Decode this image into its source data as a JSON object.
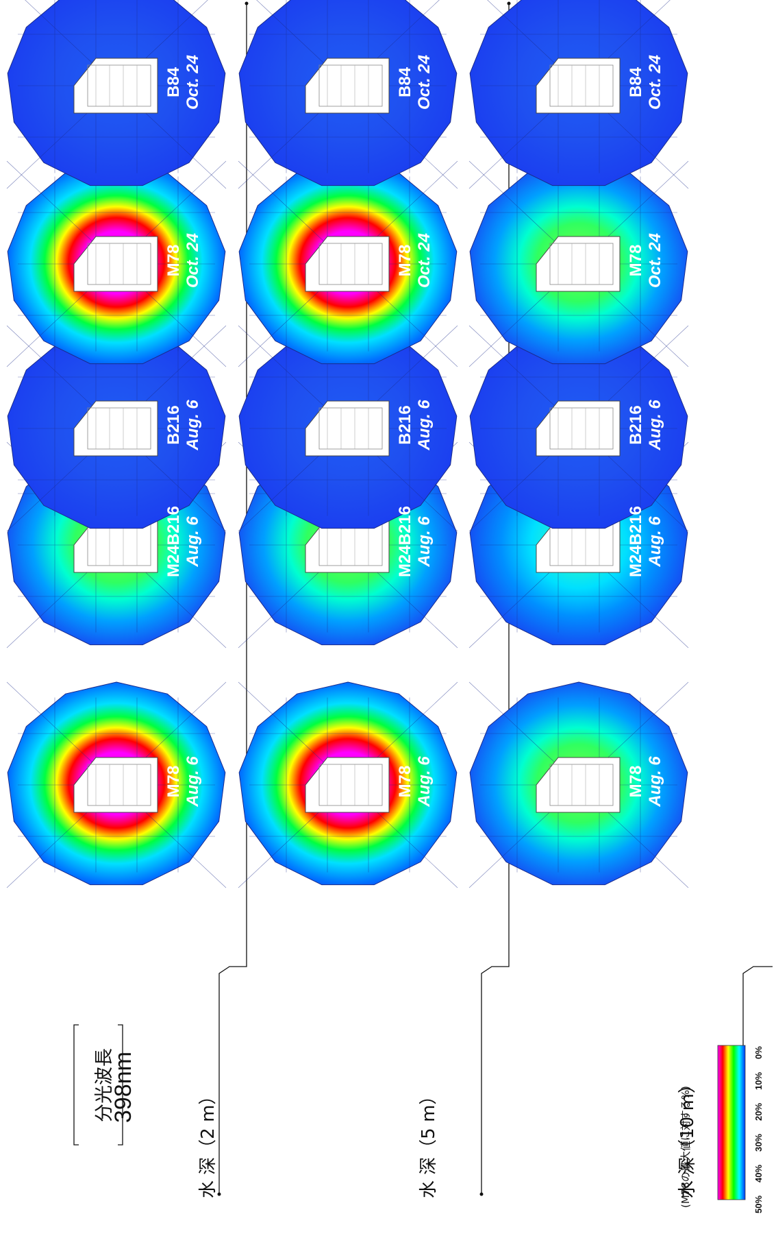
{
  "title_lines": [
    "分光波長",
    "398nm"
  ],
  "rows": [
    {
      "depth_label": "水 深（2 m）",
      "intensity": [
        1.0,
        0.55,
        0.0,
        1.0,
        0.0
      ]
    },
    {
      "depth_label": "水 深（5 m）",
      "intensity": [
        0.9,
        0.5,
        0.0,
        0.85,
        0.0
      ]
    },
    {
      "depth_label": "水 深（10 m）",
      "intensity": [
        0.45,
        0.18,
        0.0,
        0.45,
        0.0
      ]
    }
  ],
  "columns": [
    {
      "station": "M78",
      "date": "Aug. 6"
    },
    {
      "station": "M24B216",
      "date": "Aug. 6"
    },
    {
      "station": "B216",
      "date": "Aug. 6"
    },
    {
      "station": "M78",
      "date": "Oct. 24"
    },
    {
      "station": "B84",
      "date": "Oct. 24"
    }
  ],
  "colorbar": {
    "title": "(M78の最大値に対する%)",
    "ticks": [
      "50%",
      "40%",
      "30%",
      "20%",
      "10%",
      "0%"
    ],
    "colors": [
      "#ff00ff",
      "#ff0000",
      "#ffff00",
      "#00ff00",
      "#00ffff",
      "#0033ff"
    ]
  }
}
